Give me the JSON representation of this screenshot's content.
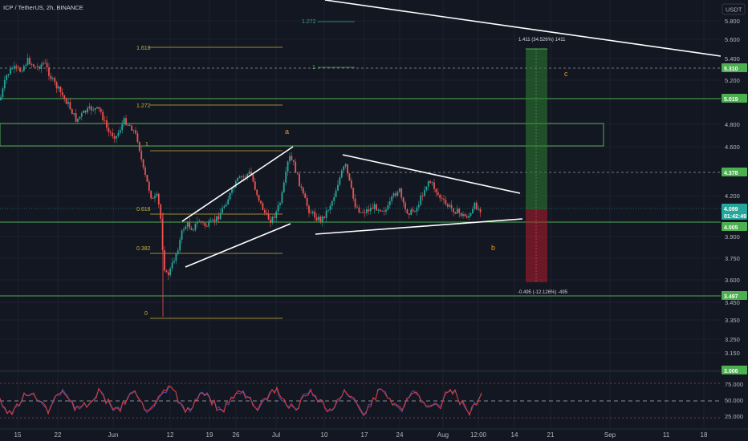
{
  "header": {
    "symbol_info": "ICP / TetherUS, 2h, BINANCE",
    "currency_button": "USDT"
  },
  "price_axis": {
    "ticks": [
      "5.800",
      "5.600",
      "5.400",
      "5.200",
      "4.800",
      "4.600",
      "4.200",
      "3.900",
      "3.750",
      "3.600",
      "3.450",
      "3.350",
      "3.250",
      "3.150",
      "3.050"
    ],
    "badges": [
      {
        "label": "5.310",
        "color": "#4caf50"
      },
      {
        "label": "5.019",
        "color": "#4caf50"
      },
      {
        "label": "4.378",
        "color": "#4caf50"
      },
      {
        "label": "4.099",
        "sub": "01:42:49",
        "color": "#26a69a"
      },
      {
        "label": "4.005",
        "color": "#4caf50"
      },
      {
        "label": "3.497",
        "color": "#4caf50"
      },
      {
        "label": "3.006",
        "color": "#4caf50"
      }
    ]
  },
  "rsi_axis": {
    "ticks": [
      "75.000",
      "50.000",
      "25.000"
    ]
  },
  "time_axis": {
    "labels": [
      "15",
      "22",
      "Jun",
      "12",
      "19",
      "26",
      "Jul",
      "10",
      "17",
      "24",
      "Aug",
      "12:00",
      "14",
      "21",
      "Sep",
      "11",
      "18"
    ]
  },
  "fib_levels": [
    {
      "label": "1.618",
      "color": "#c8b33a"
    },
    {
      "label": "1.272",
      "color": "#c8b33a"
    },
    {
      "label": "1",
      "color": "#c8b33a"
    },
    {
      "label": "0.618",
      "color": "#c8b33a"
    },
    {
      "label": "0.382",
      "color": "#c8b33a"
    },
    {
      "label": "0",
      "color": "#c8b33a"
    }
  ],
  "fib_levels_upper": [
    {
      "label": "1.272",
      "color": "#26a69a"
    },
    {
      "label": "1",
      "color": "#4caf50"
    }
  ],
  "wave_labels": [
    "a",
    "b",
    "c"
  ],
  "position_tool": {
    "target_label": "1.411 (34.526%) 1411",
    "stop_label": "-0.495 (-12.126%) -495"
  },
  "colors": {
    "background": "#131722",
    "up": "#26a69a",
    "down": "#ef5350",
    "hline": "#4caf50",
    "fib": "#c8b33a",
    "rsi": "#7e57c2"
  }
}
